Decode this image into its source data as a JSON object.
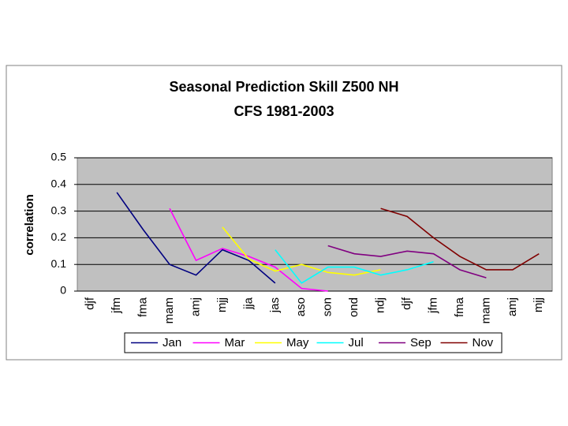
{
  "chart_data": {
    "type": "line",
    "title": [
      "Seasonal Prediction Skill Z500 NH",
      "CFS 1981-2003"
    ],
    "y_label": "correlation",
    "categories": [
      "djf",
      "jfm",
      "fma",
      "mam",
      "amj",
      "mjj",
      "jja",
      "jas",
      "aso",
      "son",
      "ond",
      "ndj",
      "djf",
      "jfm",
      "fma",
      "mam",
      "amj",
      "mjj"
    ],
    "series": [
      {
        "name": "Jan",
        "color": "#000080",
        "values": [
          null,
          0.37,
          0.23,
          0.1,
          0.06,
          0.155,
          0.115,
          0.03,
          null,
          null,
          null,
          null,
          null,
          null,
          null,
          null,
          null,
          null
        ]
      },
      {
        "name": "Mar",
        "color": "#ff00ff",
        "values": [
          null,
          null,
          null,
          0.31,
          0.115,
          0.16,
          0.13,
          0.09,
          0.01,
          0.0,
          null,
          null,
          null,
          null,
          null,
          null,
          null,
          null
        ]
      },
      {
        "name": "May",
        "color": "#ffff00",
        "values": [
          null,
          null,
          null,
          null,
          null,
          0.24,
          0.12,
          0.075,
          0.1,
          0.07,
          0.06,
          0.08,
          null,
          null,
          null,
          null,
          null,
          null
        ]
      },
      {
        "name": "Jul",
        "color": "#00ffff",
        "values": [
          null,
          null,
          null,
          null,
          null,
          null,
          null,
          0.155,
          0.03,
          0.09,
          0.09,
          0.06,
          0.08,
          0.11,
          null,
          null,
          null,
          null
        ]
      },
      {
        "name": "Sep",
        "color": "#800080",
        "values": [
          null,
          null,
          null,
          null,
          null,
          null,
          null,
          null,
          null,
          0.17,
          0.14,
          0.13,
          0.15,
          0.14,
          0.08,
          0.05,
          null,
          null
        ]
      },
      {
        "name": "Nov",
        "color": "#800000",
        "values": [
          null,
          null,
          null,
          null,
          null,
          null,
          null,
          null,
          null,
          null,
          null,
          0.31,
          0.28,
          0.2,
          0.13,
          0.08,
          0.08,
          0.14
        ]
      }
    ],
    "ylim": [
      0,
      0.5
    ],
    "yticks": [
      0,
      0.1,
      0.2,
      0.3,
      0.4,
      0.5
    ],
    "grid": true
  }
}
